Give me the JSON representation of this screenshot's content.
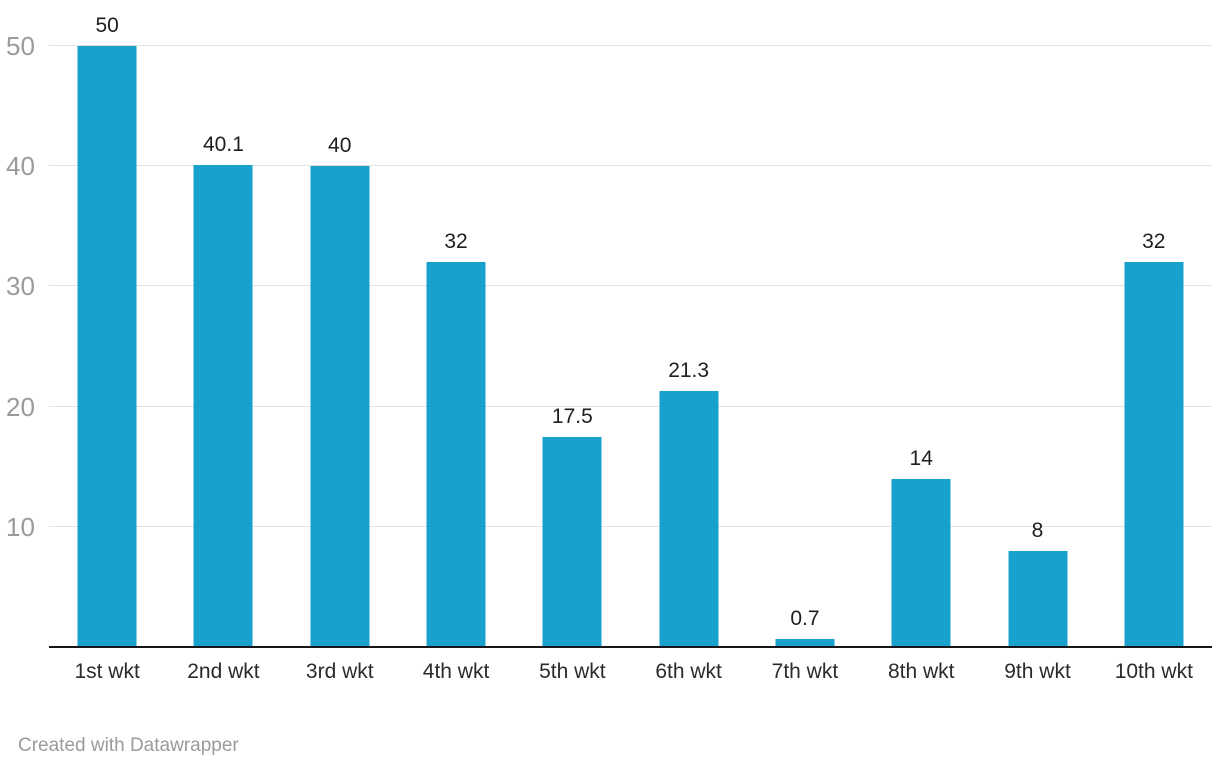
{
  "chart_data": {
    "type": "bar",
    "categories": [
      "1st wkt",
      "2nd wkt",
      "3rd wkt",
      "4th wkt",
      "5th wkt",
      "6th wkt",
      "7th wkt",
      "8th wkt",
      "9th wkt",
      "10th wkt"
    ],
    "values": [
      50,
      40.1,
      40,
      32,
      17.5,
      21.3,
      0.7,
      14,
      8,
      32
    ],
    "value_labels": [
      "50",
      "40.1",
      "40",
      "32",
      "17.5",
      "21.3",
      "0.7",
      "14",
      "8",
      "32"
    ],
    "yticks": [
      10,
      20,
      30,
      40,
      50
    ],
    "ytick_labels": [
      "10",
      "20",
      "30",
      "40",
      "50"
    ],
    "ylim": [
      0,
      50
    ],
    "grid": "horizontal",
    "legend": "none",
    "colors": {
      "bar": "#18a1cd",
      "ytick_label": "#9b9b9b",
      "value_label": "#1f1f23",
      "category_label": "#2b2b2b",
      "gridline": "#e2e2e2",
      "baseline": "#17171a"
    }
  },
  "footer": {
    "credit": "Created with Datawrapper"
  }
}
